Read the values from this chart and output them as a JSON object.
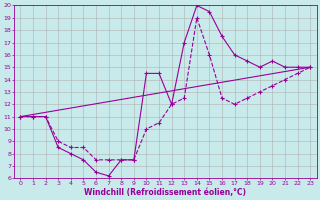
{
  "background_color": "#c8eaea",
  "grid_color": "#b0b0b0",
  "line_color": "#990099",
  "xlabel": "Windchill (Refroidissement éolien,°C)",
  "xlim": [
    -0.5,
    23.5
  ],
  "ylim": [
    6,
    20
  ],
  "xticks": [
    0,
    1,
    2,
    3,
    4,
    5,
    6,
    7,
    8,
    9,
    10,
    11,
    12,
    13,
    14,
    15,
    16,
    17,
    18,
    19,
    20,
    21,
    22,
    23
  ],
  "yticks": [
    6,
    7,
    8,
    9,
    10,
    11,
    12,
    13,
    14,
    15,
    16,
    17,
    18,
    19,
    20
  ],
  "curve1_x": [
    0,
    1,
    2,
    3,
    4,
    5,
    6,
    7,
    8,
    9,
    10,
    11,
    12,
    13,
    14,
    15,
    16,
    17,
    18,
    19,
    20,
    21,
    22,
    23
  ],
  "curve1_y": [
    11,
    11,
    11,
    8.5,
    8.0,
    7.5,
    6.5,
    6.2,
    7.5,
    7.5,
    14.5,
    14.5,
    12.0,
    17.0,
    20.0,
    19.5,
    17.5,
    16.0,
    15.5,
    15.0,
    15.5,
    15.0,
    15.0,
    15.0
  ],
  "curve1_style": "-",
  "curve2_x": [
    0,
    1,
    2,
    3,
    4,
    5,
    6,
    7,
    8,
    9,
    10,
    11,
    12,
    13,
    14,
    15,
    16,
    17,
    18,
    19,
    20,
    21,
    22,
    23
  ],
  "curve2_y": [
    11,
    11,
    11,
    9.0,
    8.5,
    8.5,
    7.5,
    7.5,
    7.5,
    7.5,
    10.0,
    10.5,
    12.0,
    12.5,
    19.0,
    16.0,
    12.5,
    12.0,
    12.5,
    13.0,
    13.5,
    14.0,
    14.5,
    15.0
  ],
  "curve2_style": "--",
  "line3_x": [
    0,
    23
  ],
  "line3_y": [
    11,
    15
  ],
  "line3_style": "-"
}
